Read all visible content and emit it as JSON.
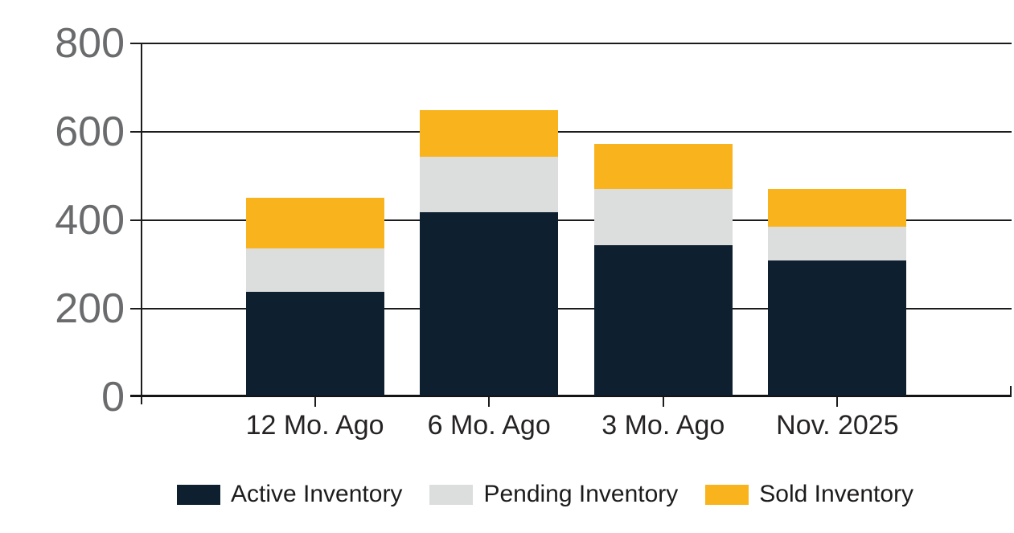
{
  "chart_data": {
    "type": "bar",
    "stacked": true,
    "title": "",
    "xlabel": "",
    "ylabel": "",
    "categories": [
      "12 Mo. Ago",
      "6 Mo. Ago",
      "3 Mo. Ago",
      "Nov. 2025"
    ],
    "series": [
      {
        "name": "Active Inventory",
        "color": "#0e2030",
        "values": [
          234,
          415,
          340,
          306
        ]
      },
      {
        "name": "Pending Inventory",
        "color": "#dcdddd",
        "values": [
          99,
          125,
          128,
          75
        ]
      },
      {
        "name": "Sold Inventory",
        "color": "#f9b41d",
        "values": [
          114,
          105,
          101,
          86
        ]
      }
    ],
    "totals": [
      447,
      645,
      569,
      467
    ],
    "ylim": [
      0,
      800
    ],
    "yticks": [
      0,
      200,
      400,
      600,
      800
    ],
    "grid": "horizontal",
    "legend_position": "bottom"
  },
  "colors": {
    "background": "#ffffff",
    "axis_line": "#1c1c1c",
    "y_tick_label": "#6a6b6d",
    "x_tick_label": "#262324",
    "legend_text": "#1d1b1c",
    "active_inventory": "#0e2030",
    "pending_inventory": "#dcdddd",
    "sold_inventory": "#f9b41d"
  }
}
